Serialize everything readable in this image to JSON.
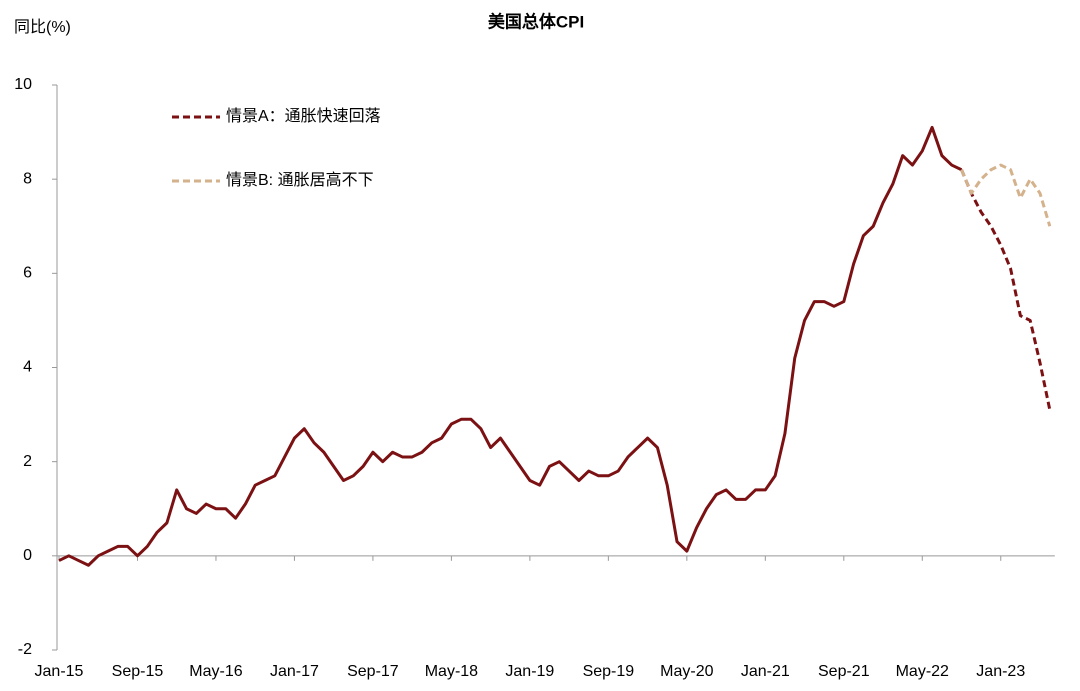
{
  "chart_data": {
    "type": "line",
    "title": "美国总体CPI",
    "y_label": "同比(%)",
    "categories": [
      "Jan-15",
      null,
      null,
      null,
      null,
      null,
      null,
      null,
      "Sep-15",
      null,
      null,
      null,
      null,
      null,
      null,
      null,
      "May-16",
      null,
      null,
      null,
      null,
      null,
      null,
      null,
      "Jan-17",
      null,
      null,
      null,
      null,
      null,
      null,
      null,
      "Sep-17",
      null,
      null,
      null,
      null,
      null,
      null,
      null,
      "May-18",
      null,
      null,
      null,
      null,
      null,
      null,
      null,
      "Jan-19",
      null,
      null,
      null,
      null,
      null,
      null,
      null,
      "Sep-19",
      null,
      null,
      null,
      null,
      null,
      null,
      null,
      "May-20",
      null,
      null,
      null,
      null,
      null,
      null,
      null,
      "Jan-21",
      null,
      null,
      null,
      null,
      null,
      null,
      null,
      "Sep-21",
      null,
      null,
      null,
      null,
      null,
      null,
      null,
      "May-22",
      null,
      null,
      null,
      null,
      null,
      null,
      null,
      "Jan-23",
      null,
      null,
      null,
      null,
      null
    ],
    "series": [
      {
        "color": "#7b1113",
        "dash": false,
        "values": [
          -0.1,
          0.0,
          -0.1,
          -0.2,
          0.0,
          0.1,
          0.2,
          0.2,
          0.0,
          0.2,
          0.5,
          0.7,
          1.4,
          1.0,
          0.9,
          1.1,
          1.0,
          1.0,
          0.8,
          1.1,
          1.5,
          1.6,
          1.7,
          2.1,
          2.5,
          2.7,
          2.4,
          2.2,
          1.9,
          1.6,
          1.7,
          1.9,
          2.2,
          2.0,
          2.2,
          2.1,
          2.1,
          2.2,
          2.4,
          2.5,
          2.8,
          2.9,
          2.9,
          2.7,
          2.3,
          2.5,
          2.2,
          1.9,
          1.6,
          1.5,
          1.9,
          2.0,
          1.8,
          1.6,
          1.8,
          1.7,
          1.7,
          1.8,
          2.1,
          2.3,
          2.5,
          2.3,
          1.5,
          0.3,
          0.1,
          0.6,
          1.0,
          1.3,
          1.4,
          1.2,
          1.2,
          1.4,
          1.4,
          1.7,
          2.6,
          4.2,
          5.0,
          5.4,
          5.4,
          5.3,
          5.4,
          6.2,
          6.8,
          7.0,
          7.5,
          7.9,
          8.5,
          8.3,
          8.6,
          9.1,
          8.5,
          8.3,
          8.2,
          null,
          null,
          null,
          null,
          null,
          null,
          null,
          null,
          null
        ]
      },
      {
        "name": "情景A：通胀快速回落",
        "color": "#7b1113",
        "dash": true,
        "values": [
          null,
          null,
          null,
          null,
          null,
          null,
          null,
          null,
          null,
          null,
          null,
          null,
          null,
          null,
          null,
          null,
          null,
          null,
          null,
          null,
          null,
          null,
          null,
          null,
          null,
          null,
          null,
          null,
          null,
          null,
          null,
          null,
          null,
          null,
          null,
          null,
          null,
          null,
          null,
          null,
          null,
          null,
          null,
          null,
          null,
          null,
          null,
          null,
          null,
          null,
          null,
          null,
          null,
          null,
          null,
          null,
          null,
          null,
          null,
          null,
          null,
          null,
          null,
          null,
          null,
          null,
          null,
          null,
          null,
          null,
          null,
          null,
          null,
          null,
          null,
          null,
          null,
          null,
          null,
          null,
          null,
          null,
          null,
          null,
          null,
          null,
          null,
          null,
          null,
          null,
          null,
          null,
          8.2,
          7.7,
          7.3,
          7.0,
          6.6,
          6.1,
          5.1,
          5.0,
          4.1,
          3.1
        ]
      },
      {
        "name": "情景B: 通胀居高不下",
        "color": "#d4b28c",
        "dash": true,
        "values": [
          null,
          null,
          null,
          null,
          null,
          null,
          null,
          null,
          null,
          null,
          null,
          null,
          null,
          null,
          null,
          null,
          null,
          null,
          null,
          null,
          null,
          null,
          null,
          null,
          null,
          null,
          null,
          null,
          null,
          null,
          null,
          null,
          null,
          null,
          null,
          null,
          null,
          null,
          null,
          null,
          null,
          null,
          null,
          null,
          null,
          null,
          null,
          null,
          null,
          null,
          null,
          null,
          null,
          null,
          null,
          null,
          null,
          null,
          null,
          null,
          null,
          null,
          null,
          null,
          null,
          null,
          null,
          null,
          null,
          null,
          null,
          null,
          null,
          null,
          null,
          null,
          null,
          null,
          null,
          null,
          null,
          null,
          null,
          null,
          null,
          null,
          null,
          null,
          null,
          null,
          null,
          null,
          8.2,
          7.7,
          8.0,
          8.2,
          8.3,
          8.2,
          7.6,
          8.0,
          7.7,
          7.0
        ]
      }
    ],
    "ylim": [
      -2,
      10
    ],
    "yticks": [
      -2,
      0,
      2,
      4,
      6,
      8,
      10
    ],
    "grid": false,
    "legend": "top-left"
  }
}
